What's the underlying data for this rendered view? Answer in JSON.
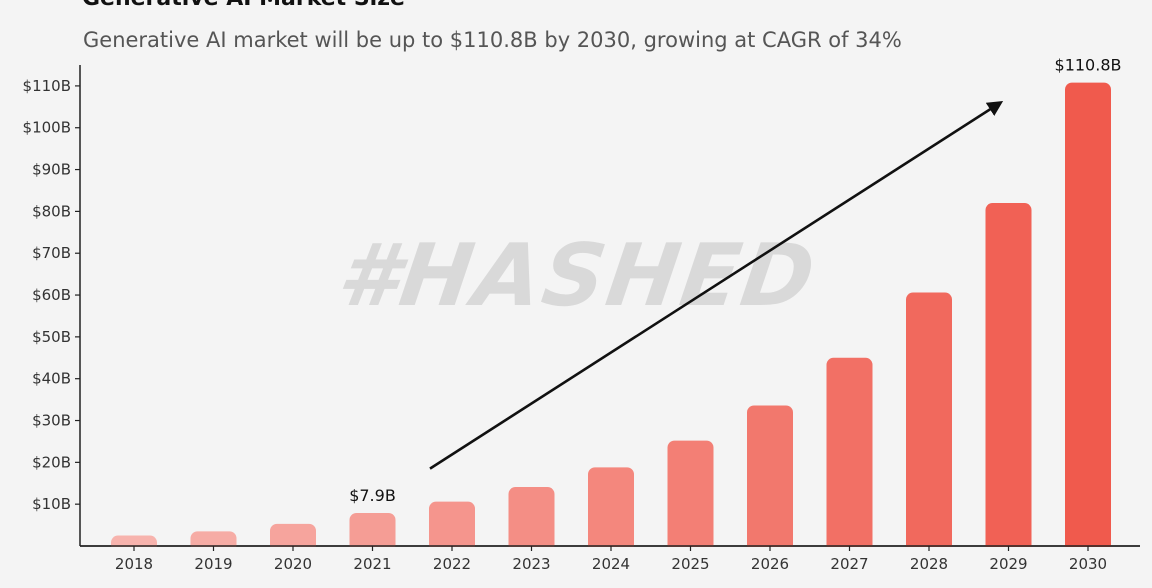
{
  "page": {
    "title": "Generative AI Market Size",
    "subtitle": "Generative AI market will be up to $110.8B by 2030, growing at CAGR of 34%",
    "watermark": "#HASHED"
  },
  "chart_data": {
    "type": "bar",
    "title": "Generative AI Market Size",
    "subtitle": "Generative AI market will be up to $110.8B by 2030, growing at CAGR of 34%",
    "xlabel": "",
    "ylabel": "",
    "categories": [
      "2018",
      "2019",
      "2020",
      "2021",
      "2022",
      "2023",
      "2024",
      "2025",
      "2026",
      "2027",
      "2028",
      "2029",
      "2030"
    ],
    "values": [
      2.5,
      3.5,
      5.3,
      7.9,
      10.6,
      14.1,
      18.8,
      25.2,
      33.6,
      45.0,
      60.6,
      82.0,
      110.8
    ],
    "ylim": [
      0,
      115
    ],
    "yticks": [
      10,
      20,
      30,
      40,
      50,
      60,
      70,
      80,
      90,
      100,
      110
    ],
    "ytick_labels": [
      "$10B",
      "$20B",
      "$30B",
      "$40B",
      "$50B",
      "$60B",
      "$70B",
      "$80B",
      "$90B",
      "$100B",
      "$110B"
    ],
    "annotations": [
      {
        "category": "2021",
        "text": "$7.9B"
      },
      {
        "category": "2030",
        "text": "$110.8B"
      }
    ],
    "trend_arrow": {
      "from": [
        "2022",
        18.5
      ],
      "to": [
        "2029",
        106
      ]
    },
    "grid": false,
    "legend": "none",
    "colors": {
      "bar_start": "#f7b3ad",
      "bar_end": "#f05a4d",
      "axis": "#222222",
      "arrow": "#111111"
    }
  }
}
